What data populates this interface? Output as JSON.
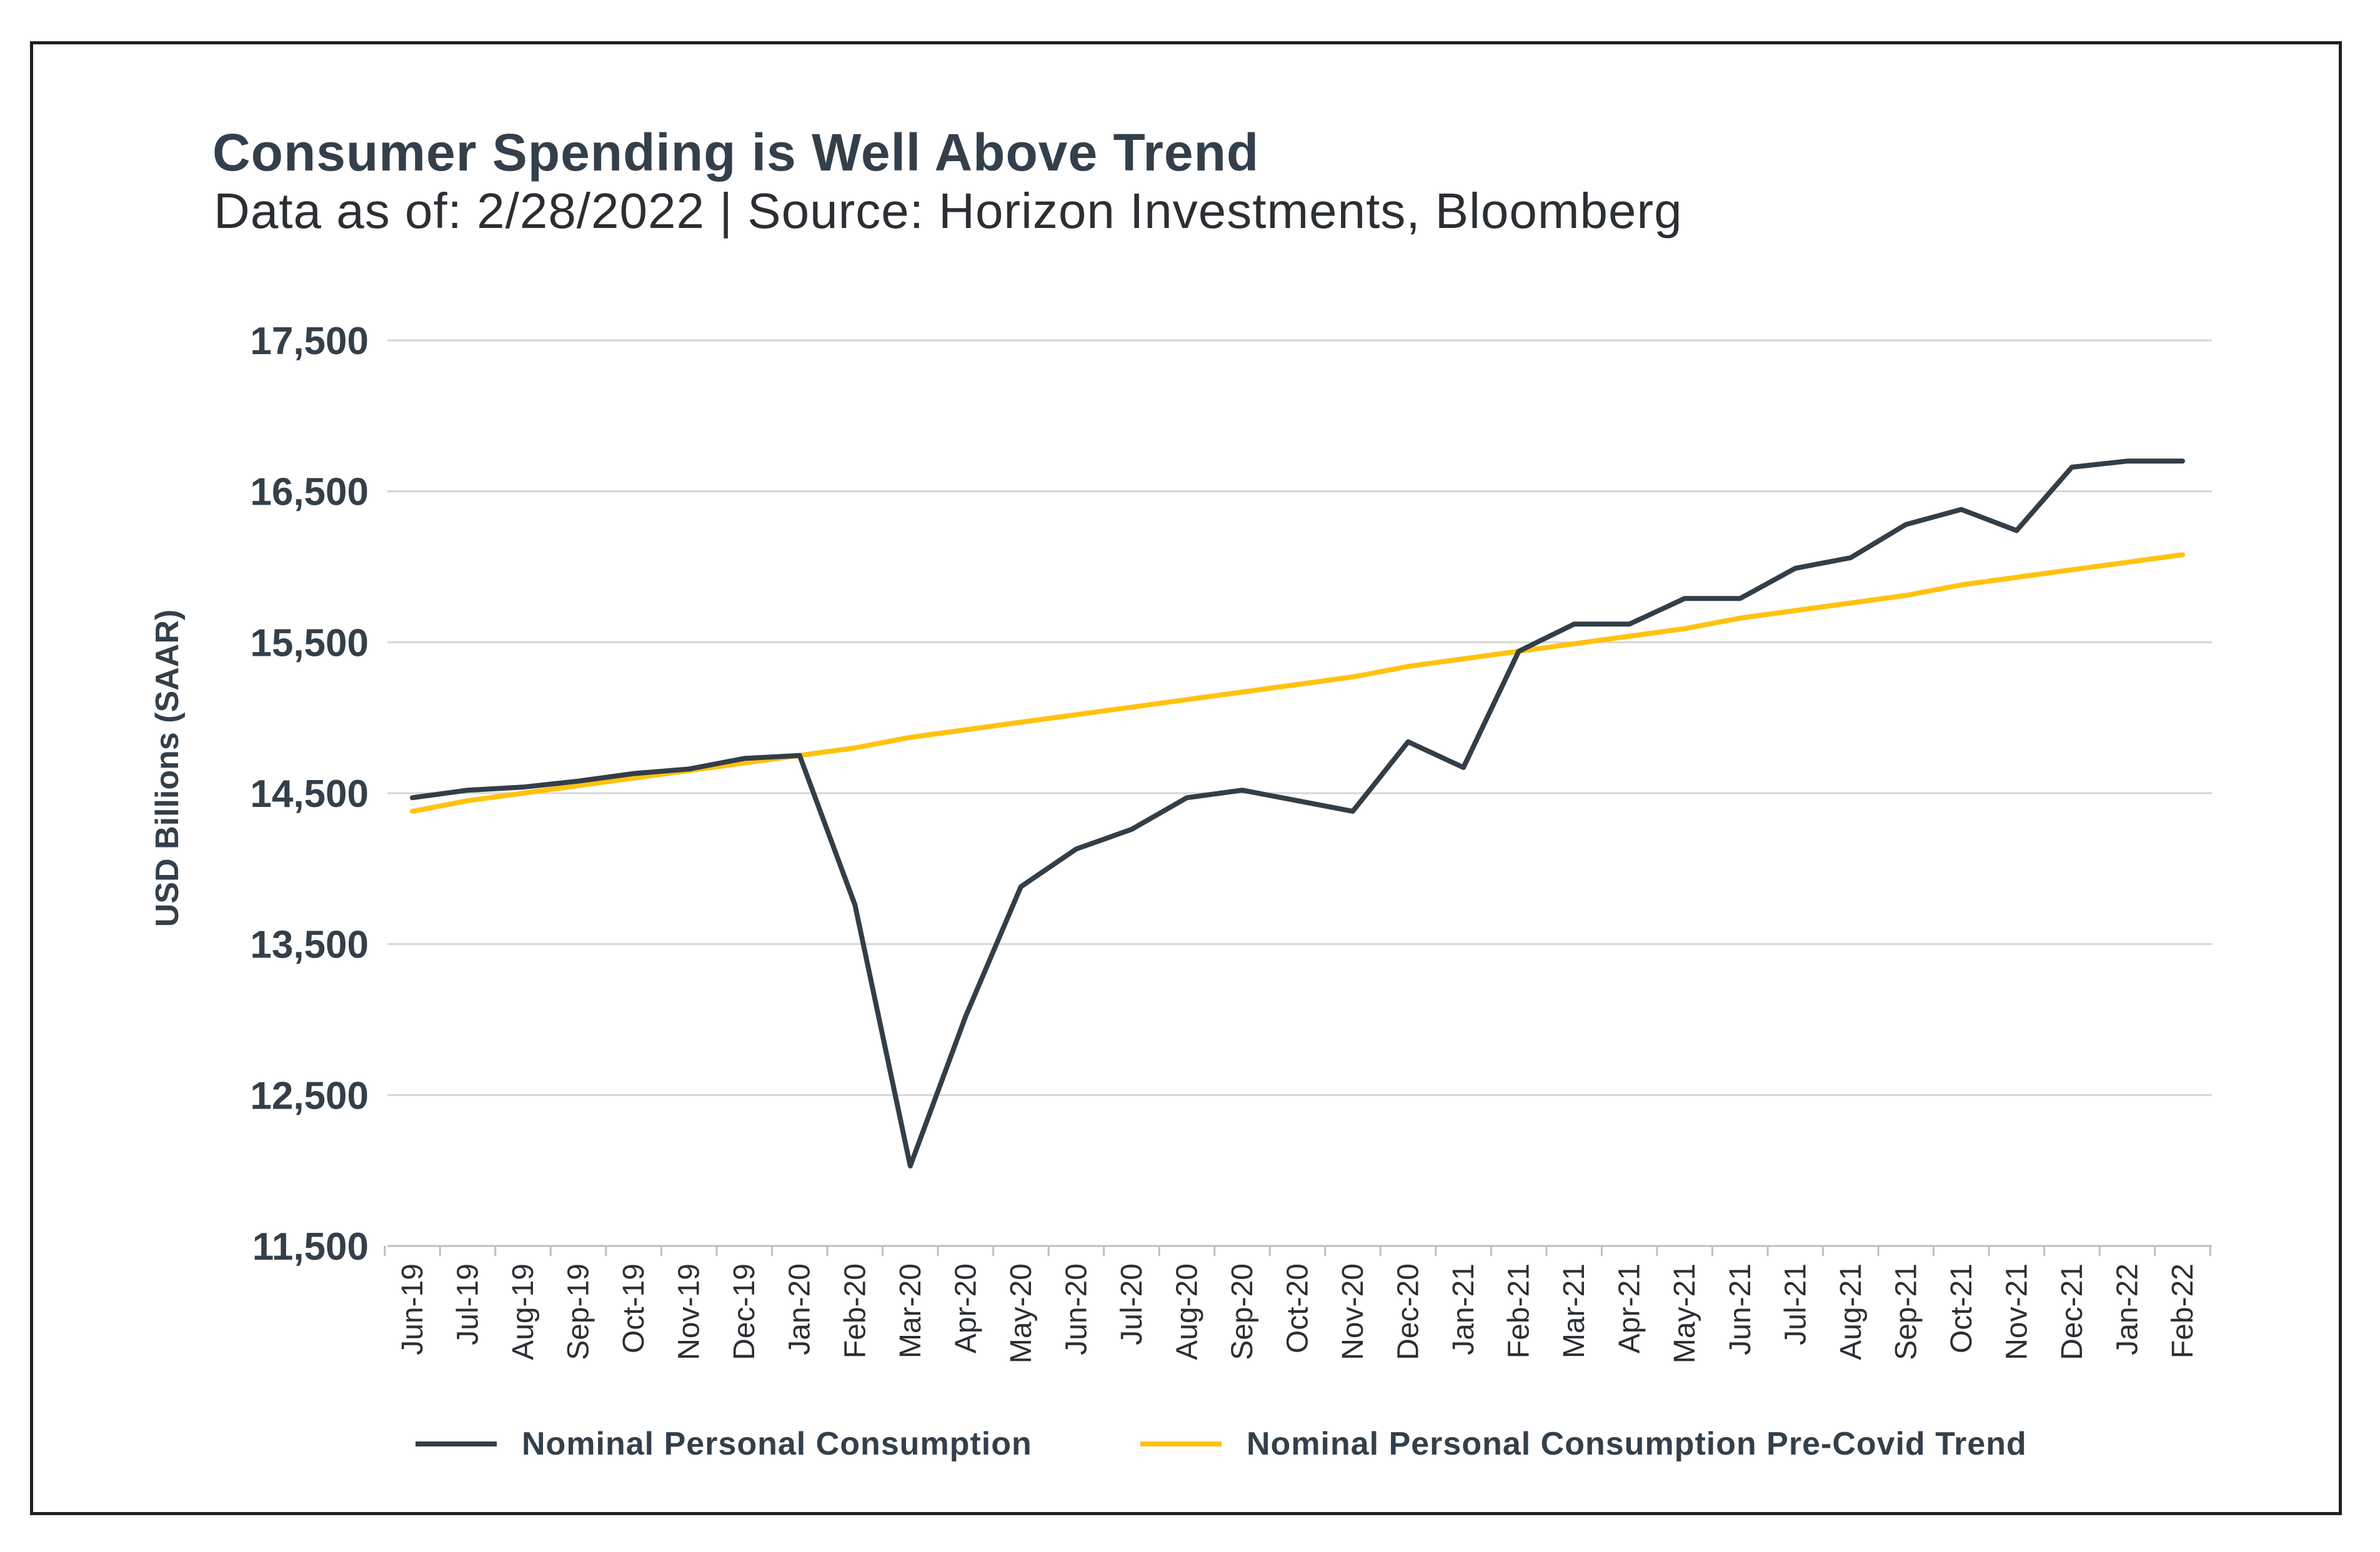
{
  "header": {
    "title": "Consumer Spending is Well Above Trend",
    "subtitle": "Data as of: 2/28/2022 | Source: Horizon Investments, Bloomberg"
  },
  "colors": {
    "actual": "#323e48",
    "trend": "#ffc20e",
    "grid": "#d6d6d6",
    "text": "#33404b"
  },
  "chart_data": {
    "type": "line",
    "title": "Consumer Spending is Well Above Trend",
    "subtitle": "Data as of: 2/28/2022 | Source: Horizon Investments, Bloomberg",
    "xlabel": "",
    "ylabel": "USD Billions (SAAR)",
    "ylim": [
      11500,
      17500
    ],
    "yticks": [
      11500,
      12500,
      13500,
      14500,
      15500,
      16500,
      17500
    ],
    "ytick_labels": [
      "11,500",
      "12,500",
      "13,500",
      "14,500",
      "15,500",
      "16,500",
      "17,500"
    ],
    "grid": "horizontal",
    "legend_position": "bottom",
    "categories": [
      "Jun-19",
      "Jul-19",
      "Aug-19",
      "Sep-19",
      "Oct-19",
      "Nov-19",
      "Dec-19",
      "Jan-20",
      "Feb-20",
      "Mar-20",
      "Apr-20",
      "May-20",
      "Jun-20",
      "Jul-20",
      "Aug-20",
      "Sep-20",
      "Oct-20",
      "Nov-20",
      "Dec-20",
      "Jan-21",
      "Feb-21",
      "Mar-21",
      "Apr-21",
      "May-21",
      "Jun-21",
      "Jul-21",
      "Aug-21",
      "Sep-21",
      "Oct-21",
      "Nov-21",
      "Dec-21",
      "Jan-22",
      "Feb-22"
    ],
    "series": [
      {
        "name": "Nominal Personal Consumption",
        "color": "#323e48",
        "values": [
          14470,
          14520,
          14540,
          14580,
          14630,
          14660,
          14730,
          14750,
          13760,
          12030,
          13020,
          13880,
          14130,
          14260,
          14470,
          14520,
          14450,
          14380,
          14840,
          14670,
          15440,
          15620,
          15620,
          15790,
          15790,
          15990,
          16060,
          16280,
          16380,
          16240,
          16660,
          16700,
          16700
        ]
      },
      {
        "name": "Nominal Personal Consumption Pre-Covid Trend",
        "color": "#ffc20e",
        "values": [
          14380,
          14450,
          14500,
          14550,
          14600,
          14650,
          14700,
          14750,
          14800,
          14870,
          14920,
          14970,
          15020,
          15070,
          15120,
          15170,
          15220,
          15270,
          15340,
          15390,
          15440,
          15490,
          15540,
          15590,
          15660,
          15710,
          15760,
          15810,
          15880,
          15930,
          15980,
          16030,
          16080
        ]
      }
    ]
  }
}
